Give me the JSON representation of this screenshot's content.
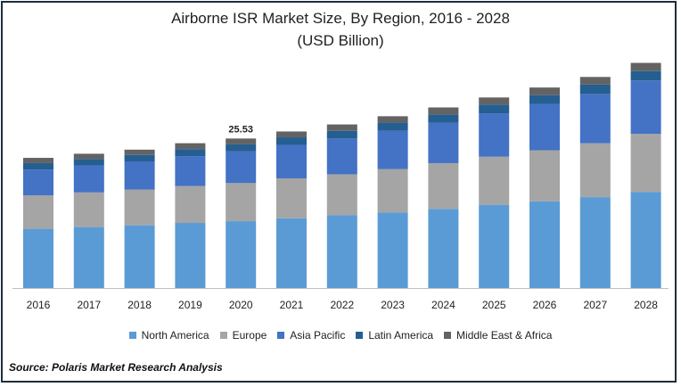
{
  "chart_data": {
    "type": "bar",
    "stacked": true,
    "title": "Airborne ISR Market Size, By Region, 2016 - 2028",
    "subtitle": "(USD Billion)",
    "categories": [
      "2016",
      "2017",
      "2018",
      "2019",
      "2020",
      "2021",
      "2022",
      "2023",
      "2024",
      "2025",
      "2026",
      "2027",
      "2028"
    ],
    "series": [
      {
        "name": "North America",
        "color": "#5b9bd5",
        "values": [
          10.1,
          10.4,
          10.7,
          11.1,
          11.4,
          11.9,
          12.4,
          12.9,
          13.5,
          14.2,
          14.8,
          15.5,
          16.4
        ]
      },
      {
        "name": "Europe",
        "color": "#a5a5a5",
        "values": [
          5.7,
          5.9,
          6.1,
          6.3,
          6.5,
          6.8,
          7.0,
          7.4,
          7.8,
          8.2,
          8.7,
          9.2,
          9.9
        ]
      },
      {
        "name": "Asia Pacific",
        "color": "#4472c4",
        "values": [
          4.4,
          4.6,
          4.8,
          5.1,
          5.4,
          5.7,
          6.1,
          6.5,
          6.9,
          7.4,
          7.9,
          8.4,
          9.1
        ]
      },
      {
        "name": "Latin America",
        "color": "#255e91",
        "values": [
          1.1,
          1.1,
          1.1,
          1.2,
          1.2,
          1.3,
          1.3,
          1.4,
          1.4,
          1.5,
          1.5,
          1.6,
          1.6
        ]
      },
      {
        "name": "Middle East & Africa",
        "color": "#636363",
        "values": [
          0.9,
          0.9,
          0.9,
          1.0,
          1.0,
          1.0,
          1.1,
          1.1,
          1.2,
          1.2,
          1.3,
          1.3,
          1.4
        ]
      }
    ],
    "data_labels": [
      {
        "category": "2020",
        "text": "25.53"
      }
    ],
    "ylim": [
      0,
      40
    ],
    "grid": false,
    "legend_position": "bottom"
  },
  "source": "Source: Polaris  Market Research Analysis"
}
